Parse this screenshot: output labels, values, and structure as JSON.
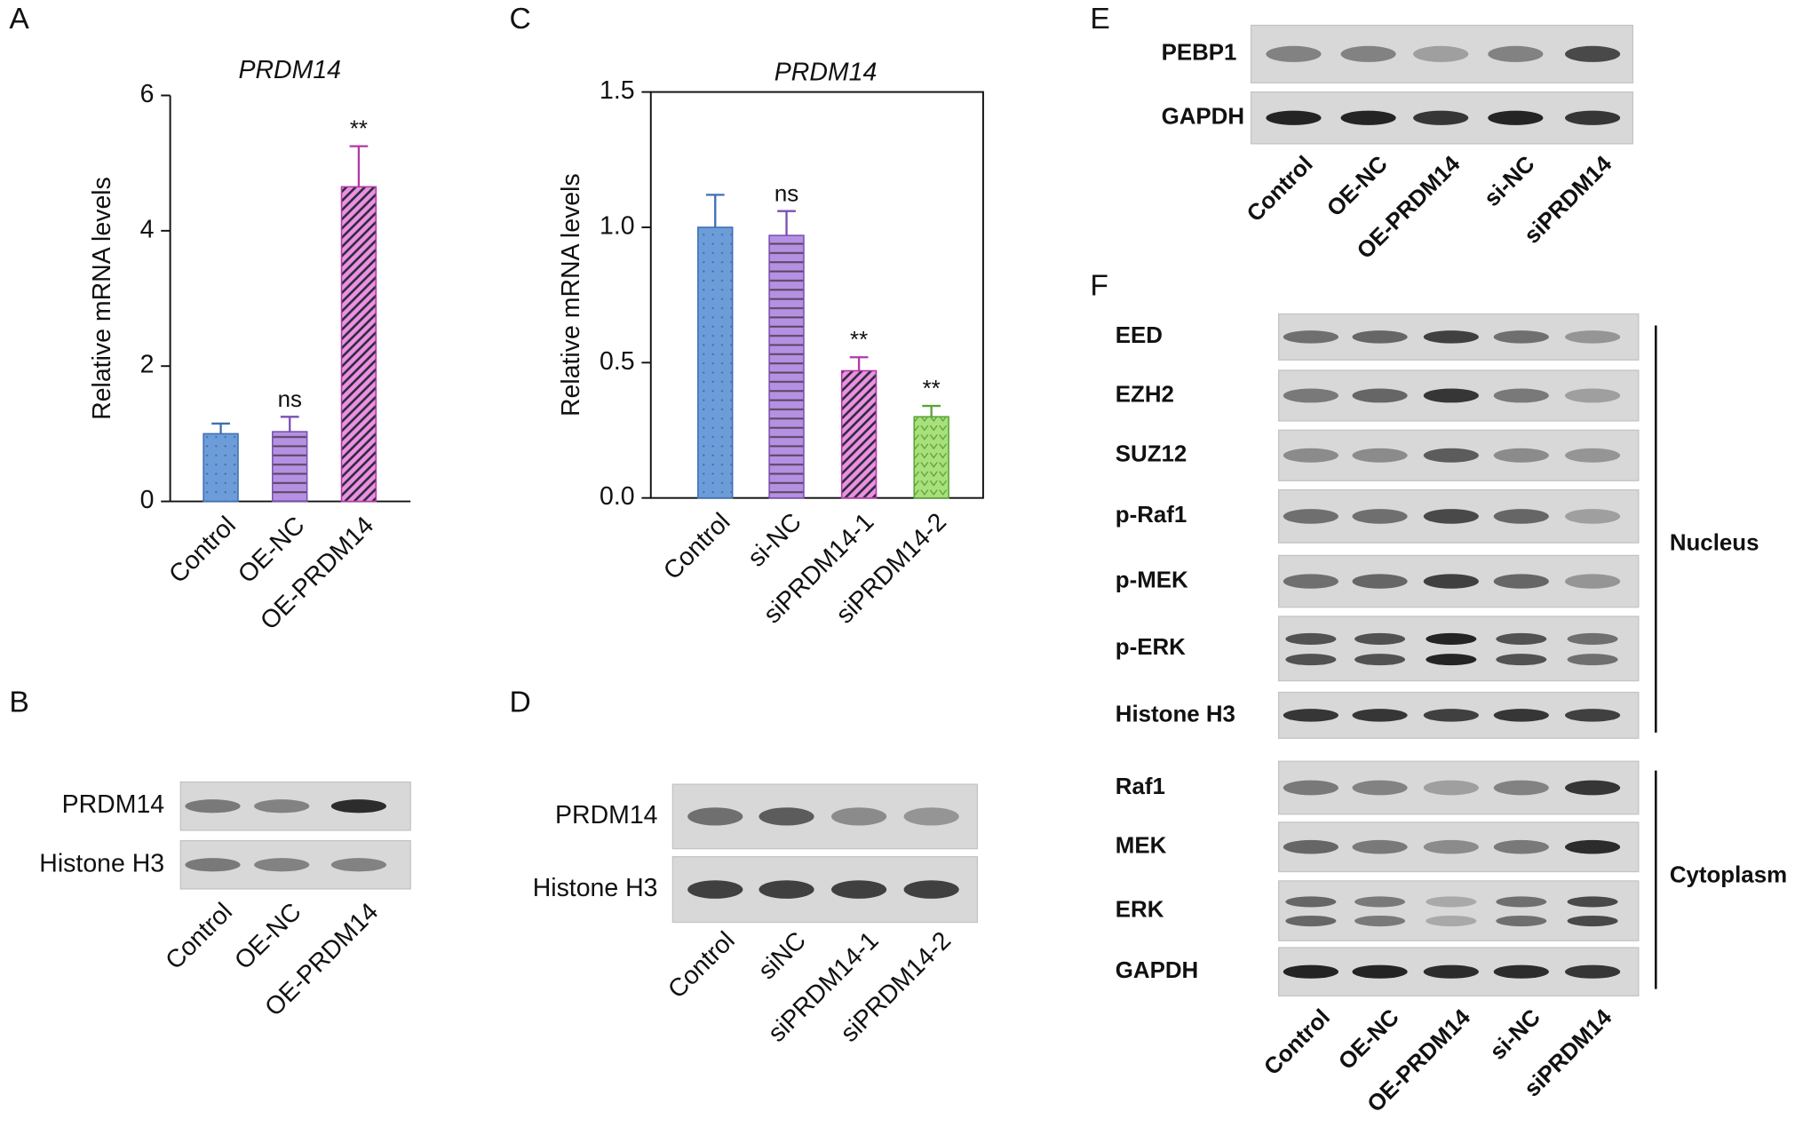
{
  "panel_labels": [
    "A",
    "B",
    "C",
    "D",
    "E",
    "F"
  ],
  "chart_data": [
    {
      "type": "bar",
      "title": "PRDM14",
      "y_label": "Relative mRNA levels",
      "categories": [
        "Control",
        "OE-NC",
        "OE-PRDM14"
      ],
      "values": [
        1.0,
        1.03,
        4.65
      ],
      "errors": [
        0.15,
        0.22,
        0.6
      ],
      "annotations": [
        null,
        "ns",
        "**"
      ],
      "colors": [
        "#6d9dd8",
        "#b591e3",
        "#ec90e2"
      ],
      "edge_colors": [
        "#3f6fb3",
        "#7a50b2",
        "#b03aa6"
      ],
      "patterns": [
        "dots",
        "hlines",
        "diag"
      ],
      "ylim": [
        0,
        6
      ],
      "yticks": [
        0,
        2,
        4,
        6
      ]
    },
    {
      "type": "bar",
      "title": "PRDM14",
      "y_label": "Relative mRNA levels",
      "categories": [
        "Control",
        "si-NC",
        "siPRDM14-1",
        "siPRDM14-2"
      ],
      "values": [
        1.0,
        0.97,
        0.47,
        0.3
      ],
      "errors": [
        0.12,
        0.09,
        0.05,
        0.04
      ],
      "annotations": [
        null,
        "ns",
        "**",
        "**"
      ],
      "colors": [
        "#6d9dd8",
        "#b591e3",
        "#ec90e2",
        "#a9e07b"
      ],
      "edge_colors": [
        "#3f6fb3",
        "#7a50b2",
        "#b03aa6",
        "#5aa33a"
      ],
      "patterns": [
        "dots",
        "hlines",
        "diag",
        "chevrons"
      ],
      "ylim": [
        0,
        1.5
      ],
      "yticks": [
        {
          "value": 0,
          "label": "0.0"
        },
        0.5,
        {
          "value": 1,
          "label": "1.0"
        },
        1.5
      ],
      "frame": true
    }
  ],
  "blots": {
    "B": {
      "rows": [
        "PRDM14",
        "Histone H3"
      ],
      "lanes": [
        "Control",
        "OE-NC",
        "OE-PRDM14"
      ]
    },
    "D": {
      "rows": [
        "PRDM14",
        "Histone H3"
      ],
      "lanes": [
        "Control",
        "siNC",
        "siPRDM14-1",
        "siPRDM14-2"
      ]
    },
    "E": {
      "rows": [
        "PEBP1",
        "GAPDH"
      ],
      "lanes": [
        "Control",
        "OE-NC",
        "OE-PRDM14",
        "si-NC",
        "siPRDM14"
      ]
    },
    "F": {
      "rows": [
        "EED",
        "EZH2",
        "SUZ12",
        "p-Raf1",
        "p-MEK",
        "p-ERK",
        "Histone H3",
        "Raf1",
        "MEK",
        "ERK",
        "GAPDH"
      ],
      "lanes": [
        "Control",
        "OE-NC",
        "OE-PRDM14",
        "si-NC",
        "siPRDM14"
      ],
      "groups": [
        "Nucleus",
        "Cytoplasm"
      ]
    }
  }
}
